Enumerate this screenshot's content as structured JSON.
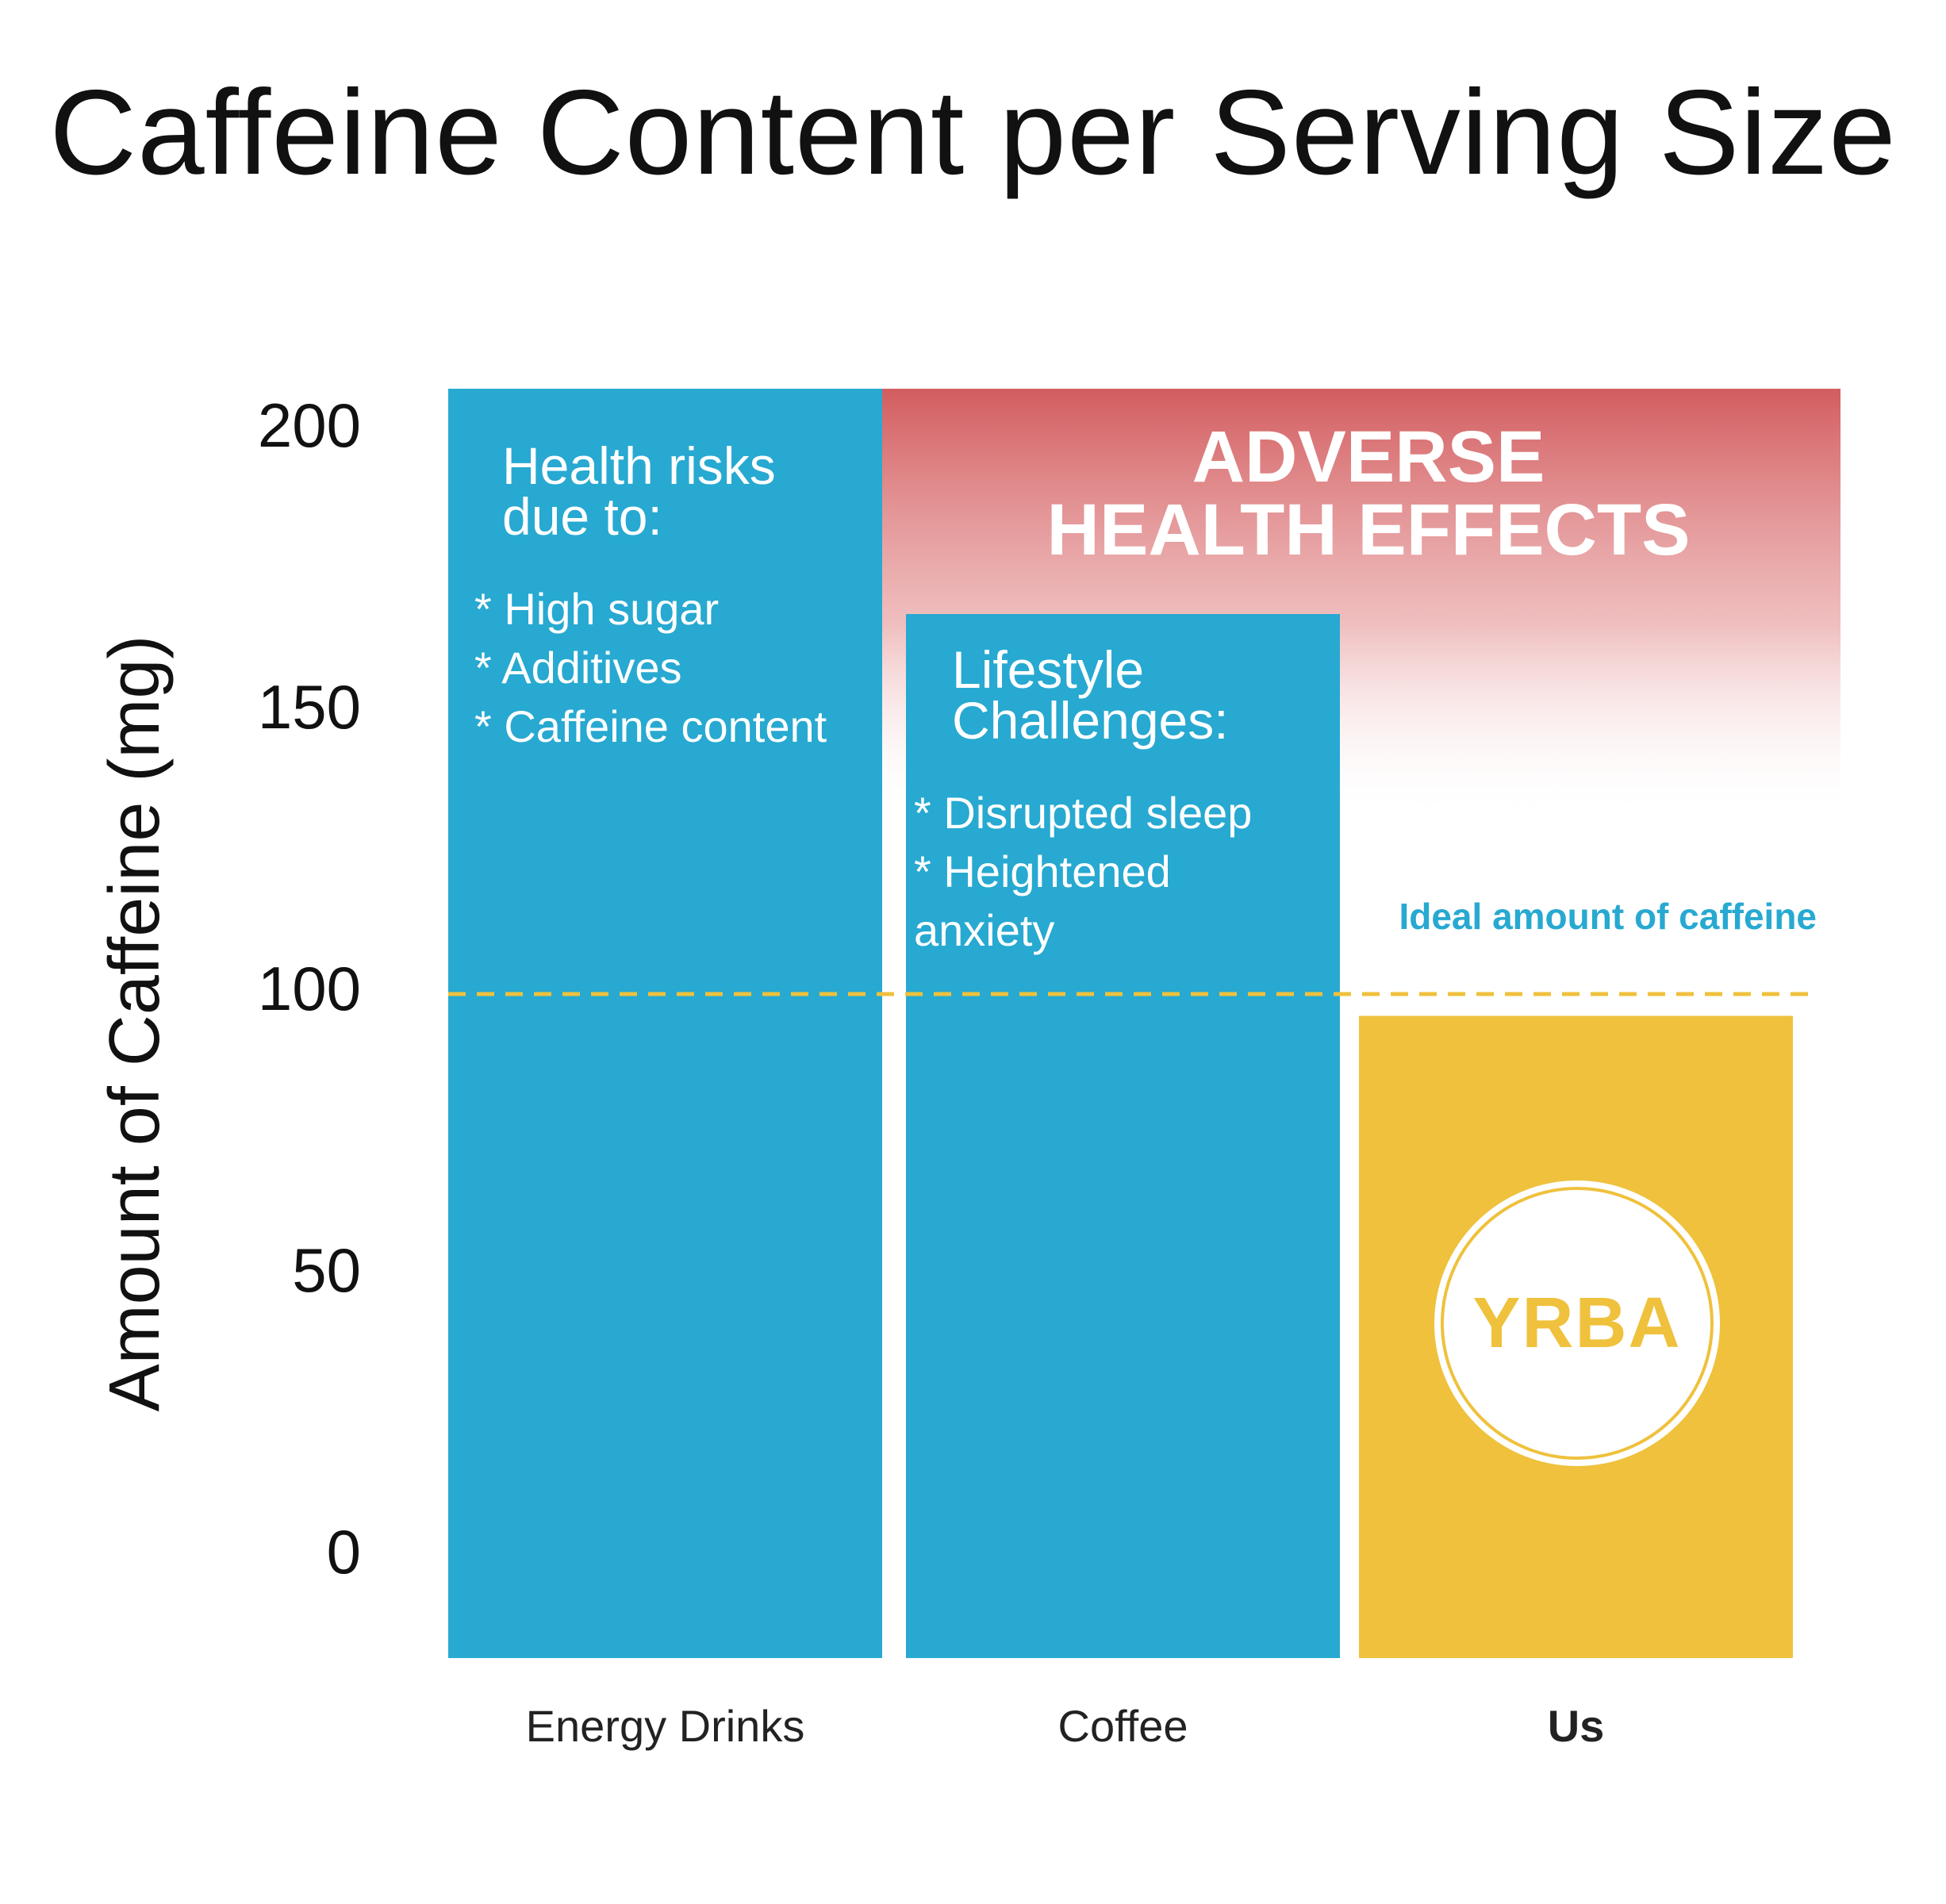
{
  "chart_data": {
    "type": "bar",
    "title": "Caffeine Content per Serving Size",
    "ylabel": "Amount of Caffeine (mg)",
    "xlabel": "",
    "ylim": [
      0,
      200
    ],
    "yticks": [
      "0",
      "50",
      "100",
      "150",
      "200"
    ],
    "categories": [
      "Energy Drinks",
      "Coffee",
      "Us"
    ],
    "values": [
      200,
      160,
      95
    ],
    "bar_colors": [
      "#27a9d1",
      "#27a9d1",
      "#efc13c"
    ],
    "reference_line": {
      "value": 100,
      "label": "Ideal amount of caffeine",
      "color": "#efc13c",
      "style": "dashed"
    },
    "zone": {
      "label_line1": "ADVERSE",
      "label_line2": "HEALTH EFFECTS",
      "from": 200,
      "color": "#d05457"
    },
    "annotations": {
      "energy_drinks": {
        "heading_line1": "Health risks",
        "heading_line2": "due to:",
        "items": [
          "* High sugar",
          "* Additives",
          "* Caffeine content"
        ]
      },
      "coffee": {
        "heading_line1": "Lifestyle",
        "heading_line2": "Challenges:",
        "items": [
          "* Disrupted sleep",
          "* Heightened",
          "anxiety"
        ]
      }
    },
    "logo_text": "YRBA"
  }
}
